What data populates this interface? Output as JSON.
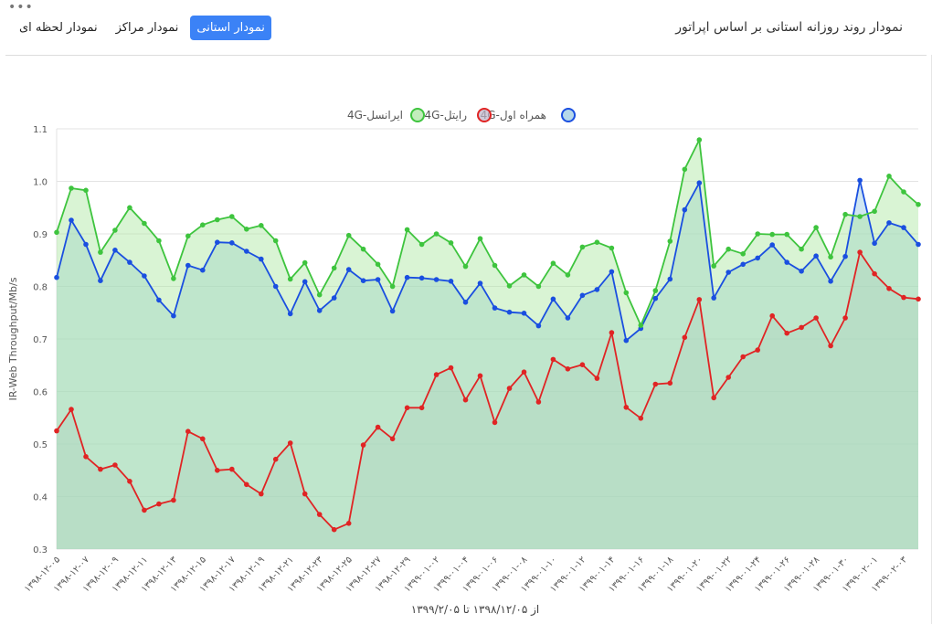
{
  "header": {
    "title": "نمودار روند روزانه استانی بر اساس اپراتور",
    "tabs": [
      {
        "label": "نمودار لحظه ای",
        "active": false
      },
      {
        "label": "نمودار مراکز",
        "active": false
      },
      {
        "label": "نمودار استانی",
        "active": true
      }
    ],
    "more_icon": "ellipsis-icon"
  },
  "chart_data": {
    "type": "area",
    "title": "",
    "ylabel": "IR-Web Throughput/Mb/s",
    "xlabel": "از ۱۳۹۸/۱۲/۰۵ تا ۱۳۹۹/۲/۰۵",
    "ylim": [
      0.3,
      1.1
    ],
    "y_ticks": [
      "0.3",
      "0.4",
      "0.5",
      "0.6",
      "0.7",
      "0.8",
      "0.9",
      "1.0",
      "1.1"
    ],
    "x_tick_labels": [
      "۱۳۹۸-۱۲-۰۵",
      "۱۳۹۸-۱۲-۰۷",
      "۱۳۹۸-۱۲-۰۹",
      "۱۳۹۸-۱۲-۱۱",
      "۱۳۹۸-۱۲-۱۳",
      "۱۳۹۸-۱۲-۱۵",
      "۱۳۹۸-۱۲-۱۷",
      "۱۳۹۸-۱۲-۱۹",
      "۱۳۹۸-۱۲-۲۱",
      "۱۳۹۸-۱۲-۲۳",
      "۱۳۹۸-۱۲-۲۵",
      "۱۳۹۸-۱۲-۲۷",
      "۱۳۹۸-۱۲-۲۹",
      "۱۳۹۹-۰۱-۰۲",
      "۱۳۹۹-۰۱-۰۴",
      "۱۳۹۹-۰۱-۰۶",
      "۱۳۹۹-۰۱-۰۸",
      "۱۳۹۹-۰۱-۱۰",
      "۱۳۹۹-۰۱-۱۲",
      "۱۳۹۹-۰۱-۱۴",
      "۱۳۹۹-۰۱-۱۶",
      "۱۳۹۹-۰۱-۱۸",
      "۱۳۹۹-۰۱-۲۰",
      "۱۳۹۹-۰۱-۲۲",
      "۱۳۹۹-۰۱-۲۴",
      "۱۳۹۹-۰۱-۲۶",
      "۱۳۹۹-۰۱-۲۸",
      "۱۳۹۹-۰۱-۳۰",
      "۱۳۹۹-۰۲-۰۱",
      "۱۳۹۹-۰۲-۰۳"
    ],
    "grid": true,
    "legend_position": "top-center",
    "series": [
      {
        "name": "4G-همراه اول",
        "color": "#1a4fe0",
        "fill": "rgba(150,200,225,0.45)",
        "values": [
          0.817,
          0.926,
          0.88,
          0.811,
          0.869,
          0.846,
          0.82,
          0.774,
          0.744,
          0.84,
          0.831,
          0.884,
          0.883,
          0.867,
          0.852,
          0.8,
          0.748,
          0.809,
          0.754,
          0.778,
          0.832,
          0.811,
          0.813,
          0.753,
          0.817,
          0.816,
          0.813,
          0.81,
          0.77,
          0.806,
          0.759,
          0.751,
          0.749,
          0.725,
          0.776,
          0.74,
          0.783,
          0.794,
          0.828,
          0.697,
          0.72,
          0.777,
          0.814,
          0.946,
          0.997,
          0.778,
          0.827,
          0.842,
          0.854,
          0.879,
          0.846,
          0.829,
          0.858,
          0.81,
          0.857,
          1.002,
          0.882,
          0.921,
          0.912,
          0.88
        ]
      },
      {
        "name": "4G-رایتل",
        "color": "#e02424",
        "fill": "rgba(190,180,200,0.35)",
        "values": [
          0.525,
          0.566,
          0.476,
          0.452,
          0.46,
          0.429,
          0.374,
          0.386,
          0.393,
          0.524,
          0.51,
          0.45,
          0.452,
          0.423,
          0.405,
          0.471,
          0.502,
          0.405,
          0.366,
          0.337,
          0.349,
          0.498,
          0.532,
          0.51,
          0.569,
          0.569,
          0.632,
          0.645,
          0.584,
          0.63,
          0.541,
          0.606,
          0.637,
          0.58,
          0.661,
          0.643,
          0.651,
          0.625,
          0.712,
          0.57,
          0.549,
          0.614,
          0.616,
          0.703,
          0.775,
          0.588,
          0.627,
          0.666,
          0.679,
          0.744,
          0.711,
          0.722,
          0.74,
          0.687,
          0.74,
          0.865,
          0.824,
          0.796,
          0.779,
          0.776
        ]
      },
      {
        "name": "4G-ایرانسل",
        "color": "#3ec43e",
        "fill": "rgba(170,230,160,0.45)",
        "values": [
          0.903,
          0.987,
          0.983,
          0.865,
          0.907,
          0.95,
          0.92,
          0.887,
          0.815,
          0.896,
          0.917,
          0.927,
          0.933,
          0.909,
          0.916,
          0.887,
          0.814,
          0.845,
          0.784,
          0.835,
          0.897,
          0.871,
          0.842,
          0.8,
          0.908,
          0.88,
          0.9,
          0.883,
          0.838,
          0.891,
          0.84,
          0.801,
          0.822,
          0.8,
          0.844,
          0.822,
          0.875,
          0.884,
          0.873,
          0.788,
          0.726,
          0.792,
          0.886,
          1.023,
          1.079,
          0.839,
          0.871,
          0.862,
          0.9,
          0.899,
          0.899,
          0.871,
          0.912,
          0.856,
          0.937,
          0.933,
          0.943,
          1.01,
          0.98,
          0.956
        ]
      }
    ]
  }
}
